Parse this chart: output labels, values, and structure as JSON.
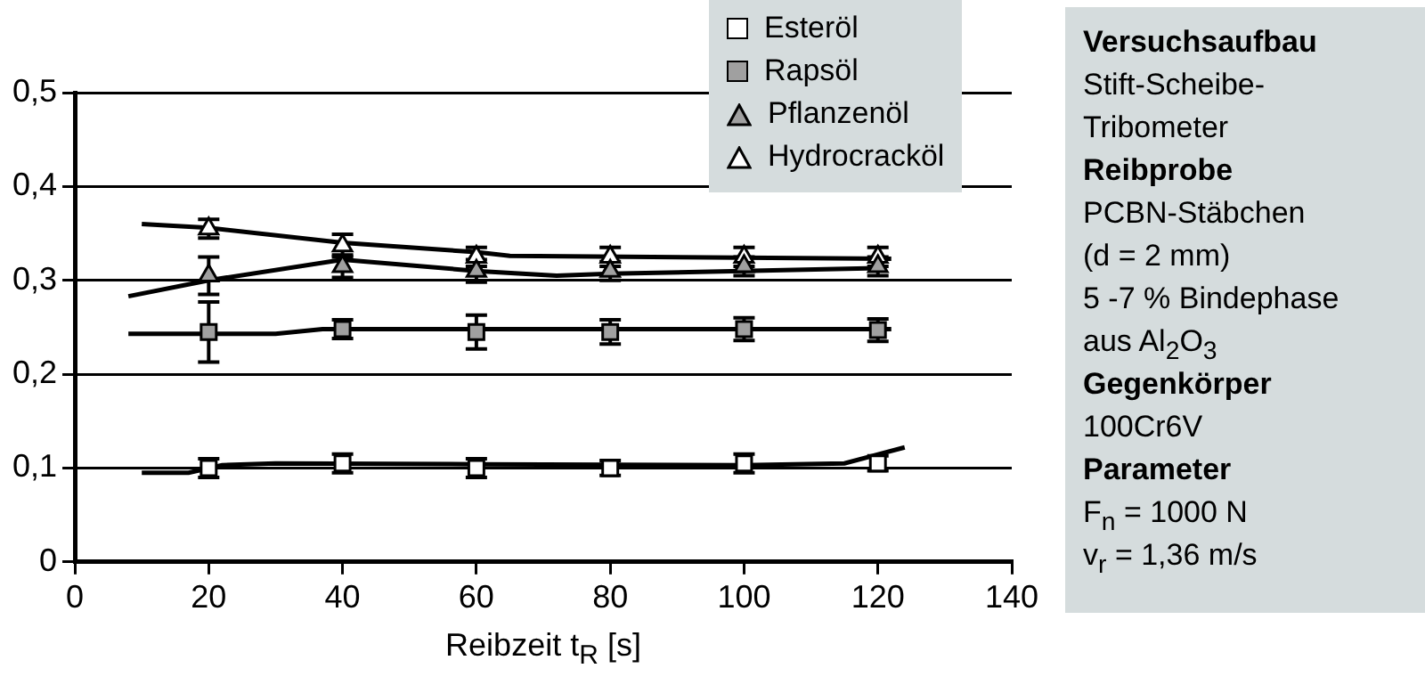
{
  "chart_data": [
    {
      "type": "scatter",
      "xlabel": "Reibzeit t$_{R}$ [s]",
      "x": [
        20,
        40,
        60,
        80,
        100,
        120
      ],
      "xlim": [
        0,
        140
      ],
      "xticks": [
        0,
        20,
        40,
        60,
        80,
        100,
        120,
        140
      ],
      "ylim": [
        0,
        0.5
      ],
      "yticks": [
        {
          "value": 0,
          "label": "0"
        },
        {
          "value": 0.1,
          "label": "0,1"
        },
        {
          "value": 0.2,
          "label": "0,2"
        },
        {
          "value": 0.3,
          "label": "0,3"
        },
        {
          "value": 0.4,
          "label": "0,4"
        },
        {
          "value": 0.5,
          "label": "0,5"
        }
      ],
      "grid": "y",
      "legend": "top right",
      "series": [
        {
          "name": "Esteröl",
          "type": "scatter",
          "marker": "square",
          "color": "#ffffff",
          "values": [
            0.1,
            0.105,
            0.1,
            0.1,
            0.105,
            0.105
          ],
          "errors": [
            0.01,
            0.01,
            0.01,
            0.008,
            0.01,
            0.008
          ]
        },
        {
          "name": "Rapsöl",
          "type": "scatter",
          "marker": "square",
          "color": "#a0a0a0",
          "values": [
            0.245,
            0.248,
            0.245,
            0.245,
            0.248,
            0.247
          ],
          "errors": [
            0.032,
            0.01,
            0.018,
            0.013,
            0.012,
            0.012
          ]
        },
        {
          "name": "Pflanzenöl",
          "type": "scatter",
          "marker": "triangle",
          "color": "#a0a0a0",
          "values": [
            0.305,
            0.315,
            0.31,
            0.31,
            0.315,
            0.315
          ],
          "errors": [
            0.02,
            0.012,
            0.012,
            0.01,
            0.01,
            0.01
          ]
        },
        {
          "name": "Hydrocracköl",
          "type": "scatter",
          "marker": "triangle",
          "color": "#ffffff",
          "values": [
            0.355,
            0.337,
            0.325,
            0.325,
            0.325,
            0.325
          ],
          "errors": [
            0.01,
            0.012,
            0.01,
            0.01,
            0.01,
            0.01
          ]
        },
        {
          "type": "line",
          "marker": "none",
          "color": "#000000",
          "x": [
            10,
            17,
            22,
            30,
            60,
            100,
            115,
            124
          ],
          "values": [
            0.095,
            0.095,
            0.103,
            0.105,
            0.104,
            0.103,
            0.105,
            0.122
          ]
        },
        {
          "type": "line",
          "marker": "none",
          "color": "#000000",
          "x": [
            8,
            30,
            37,
            122
          ],
          "values": [
            0.243,
            0.243,
            0.248,
            0.248
          ]
        },
        {
          "type": "line",
          "marker": "none",
          "color": "#000000",
          "x": [
            8,
            20,
            40,
            60,
            72,
            80,
            120
          ],
          "values": [
            0.283,
            0.3,
            0.322,
            0.31,
            0.305,
            0.307,
            0.313
          ]
        },
        {
          "type": "line",
          "marker": "none",
          "color": "#000000",
          "x": [
            10,
            20,
            40,
            60,
            65,
            122
          ],
          "values": [
            0.36,
            0.356,
            0.34,
            0.33,
            0.326,
            0.323
          ]
        }
      ]
    },
    {
      "type": "other",
      "title": "Versuchsaufbau",
      "annotations": [
        "Stift-Scheibe-",
        "Tribometer"
      ]
    },
    {
      "type": "other",
      "title": "Reibprobe",
      "annotations": [
        "PCBN-Stäbchen",
        "(d = 2 mm)",
        "5 -7 % Bindephase",
        "aus Al$_{2}$O$_{3}$"
      ]
    },
    {
      "type": "other",
      "title": "Gegenkörper",
      "annotations": [
        "100Cr6V"
      ]
    },
    {
      "type": "other",
      "title": "Parameter",
      "annotations": [
        "F$_{n}$ = 1000 N",
        "v$_{r}$ = 1,36 m/s"
      ]
    }
  ]
}
